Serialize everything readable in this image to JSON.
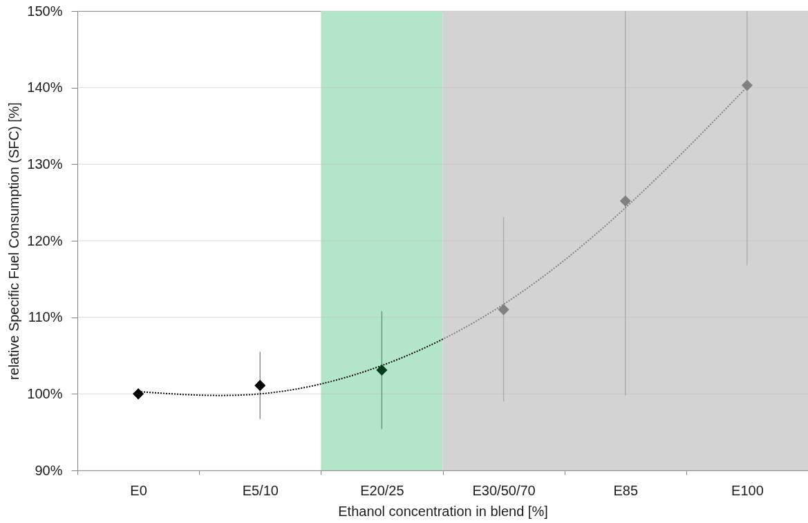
{
  "chart_data": {
    "type": "scatter",
    "xlabel": "Ethanol concentration in blend [%]",
    "ylabel": "relative Specific Fuel Consumption (SFC) [%]",
    "categories": [
      "E0",
      "E5/10",
      "E20/25",
      "E30/50/70",
      "E85",
      "E100"
    ],
    "ylim": [
      90,
      150
    ],
    "yticks": [
      {
        "value": 90,
        "label": "90%"
      },
      {
        "value": 100,
        "label": "100%"
      },
      {
        "value": 110,
        "label": "110%"
      },
      {
        "value": 120,
        "label": "120%"
      },
      {
        "value": 130,
        "label": "130%"
      },
      {
        "value": 140,
        "label": "140%"
      },
      {
        "value": 150,
        "label": "150%"
      }
    ],
    "grid": "y",
    "marker": "diamond",
    "series": [
      {
        "colors": [
          "#000000",
          "#000000",
          "#003b1c",
          "#808080",
          "#808080",
          "#808080"
        ],
        "values": [
          100.0,
          101.1,
          103.1,
          111.0,
          125.2,
          140.3
        ],
        "errors": [
          null,
          [
            96.7,
            105.5
          ],
          [
            95.4,
            110.8
          ],
          [
            99.0,
            123.1
          ],
          [
            99.8,
            150
          ],
          [
            116.8,
            150
          ]
        ]
      },
      {
        "type": "line",
        "colors": [
          "#000000",
          "#000000",
          "#000000",
          "#808080",
          "#808080",
          "#808080"
        ],
        "line_style": "dotted",
        "marker": "none",
        "values": [
          100.3,
          100.0,
          103.7,
          111.7,
          124.3,
          140.1
        ]
      }
    ],
    "bands": [
      {
        "axis": "x",
        "from": "E20/25",
        "to": "E20/25",
        "color": "#b3e6c9"
      },
      {
        "axis": "x",
        "from": "E30/50/70",
        "to": "E100",
        "color": "#d3d3d3"
      }
    ]
  }
}
